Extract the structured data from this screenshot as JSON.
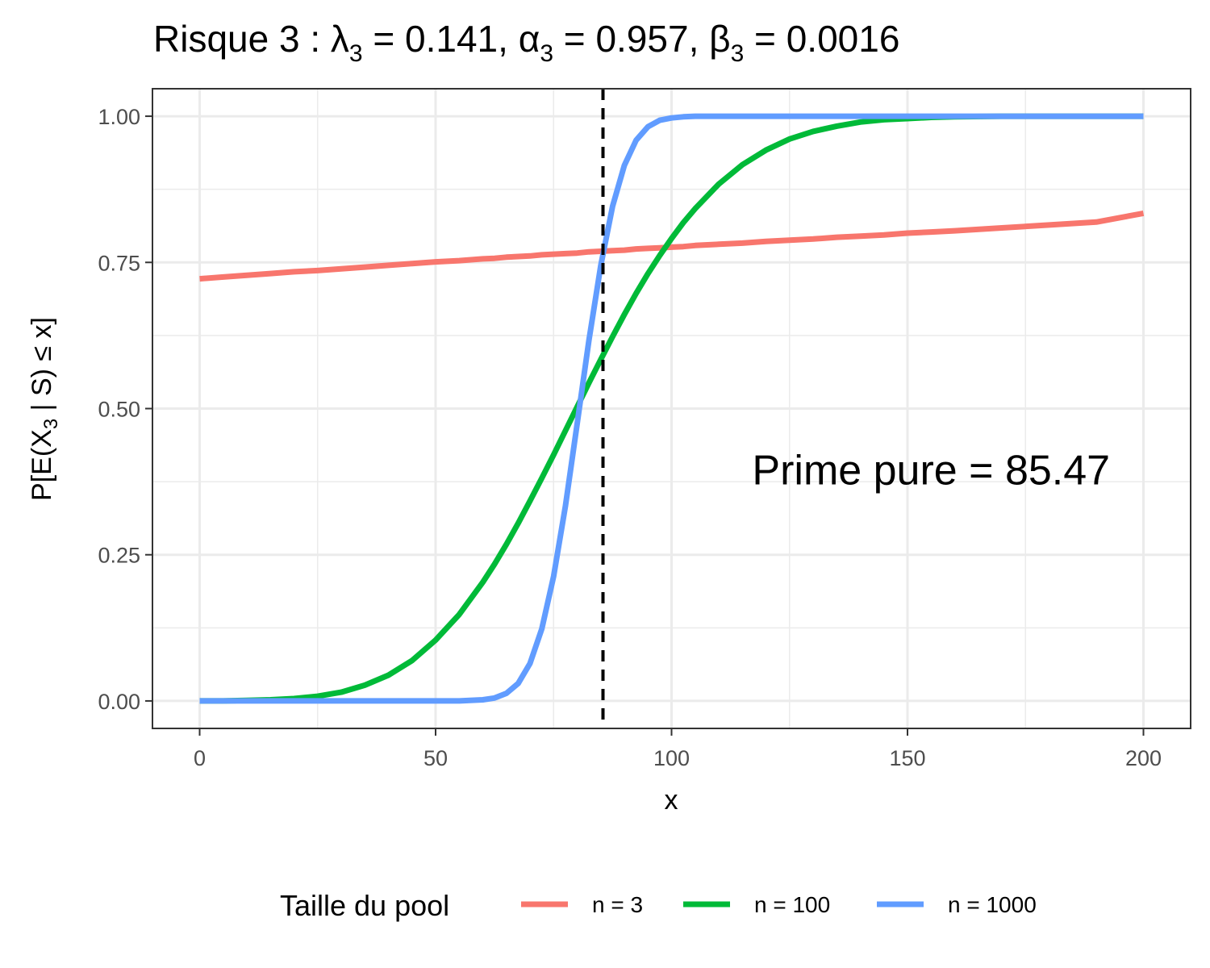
{
  "chart_data": {
    "type": "line",
    "title": {
      "prefix": "Risque 3 : ",
      "lambda_symbol": "λ",
      "alpha_symbol": "α",
      "beta_symbol": "β",
      "subscript": "3",
      "eq": " = ",
      "sep": ", ",
      "lambda_value": "0.141",
      "alpha_value": "0.957",
      "beta_value": "0.0016"
    },
    "xlabel": "x",
    "ylabel": {
      "text1": "P[E(X",
      "subscript": "3",
      "text2": " | S) ≤ x]"
    },
    "xlim": [
      -10,
      210
    ],
    "ylim": [
      -0.047,
      1.047
    ],
    "x_ticks": [
      0,
      50,
      100,
      150,
      200
    ],
    "x_tick_labels": [
      "0",
      "50",
      "100",
      "150",
      "200"
    ],
    "x_minor_ticks": [
      25,
      75,
      125,
      175
    ],
    "y_ticks": [
      0,
      0.25,
      0.5,
      0.75,
      1.0
    ],
    "y_tick_labels": [
      "0.00",
      "0.25",
      "0.50",
      "0.75",
      "1.00"
    ],
    "y_minor_ticks": [
      0.125,
      0.375,
      0.625,
      0.875
    ],
    "grid": true,
    "x": [
      0,
      5,
      10,
      15,
      20,
      25,
      30,
      35,
      40,
      45,
      50,
      55,
      60,
      62.5,
      65,
      67.5,
      70,
      72.5,
      75,
      77.5,
      80,
      82.5,
      85,
      87.5,
      90,
      92.5,
      95,
      97.5,
      100,
      102.5,
      105,
      110,
      115,
      120,
      125,
      130,
      135,
      140,
      145,
      150,
      155,
      160,
      170,
      180,
      190,
      200
    ],
    "series": [
      {
        "name": "n = 3",
        "color": "#F8766D",
        "values": [
          0.722,
          0.725,
          0.728,
          0.731,
          0.734,
          0.736,
          0.739,
          0.742,
          0.745,
          0.748,
          0.751,
          0.753,
          0.756,
          0.757,
          0.759,
          0.76,
          0.761,
          0.763,
          0.764,
          0.765,
          0.766,
          0.768,
          0.769,
          0.77,
          0.771,
          0.773,
          0.774,
          0.775,
          0.776,
          0.777,
          0.779,
          0.781,
          0.783,
          0.786,
          0.788,
          0.79,
          0.793,
          0.795,
          0.797,
          0.8,
          0.802,
          0.804,
          0.809,
          0.814,
          0.819,
          0.834
        ]
      },
      {
        "name": "n = 100",
        "color": "#00BA38",
        "values": [
          0.0,
          0.0,
          0.001,
          0.002,
          0.004,
          0.008,
          0.015,
          0.027,
          0.044,
          0.069,
          0.104,
          0.148,
          0.203,
          0.234,
          0.268,
          0.304,
          0.342,
          0.381,
          0.421,
          0.462,
          0.503,
          0.544,
          0.584,
          0.623,
          0.661,
          0.697,
          0.731,
          0.762,
          0.791,
          0.818,
          0.842,
          0.884,
          0.917,
          0.942,
          0.961,
          0.974,
          0.983,
          0.99,
          0.994,
          0.996,
          0.998,
          0.999,
          1.0,
          1.0,
          1.0,
          1.0
        ]
      },
      {
        "name": "n = 1000",
        "color": "#619CFF",
        "values": [
          0.0,
          0.0,
          0.0,
          0.0,
          0.0,
          0.0,
          0.0,
          0.0,
          0.0,
          0.0,
          0.0,
          0.0,
          0.002,
          0.005,
          0.013,
          0.03,
          0.064,
          0.123,
          0.213,
          0.333,
          0.474,
          0.617,
          0.745,
          0.846,
          0.916,
          0.959,
          0.982,
          0.993,
          0.997,
          0.999,
          1.0,
          1.0,
          1.0,
          1.0,
          1.0,
          1.0,
          1.0,
          1.0,
          1.0,
          1.0,
          1.0,
          1.0,
          1.0,
          1.0,
          1.0,
          1.0
        ]
      }
    ],
    "vline_x": 85.47,
    "annotation": {
      "text": "Prime pure = 85.47",
      "x": 155,
      "y": 0.395
    },
    "legend": {
      "title": "Taille du pool",
      "position": "bottom",
      "entries": [
        "n = 3",
        "n = 100",
        "n = 1000"
      ]
    }
  }
}
